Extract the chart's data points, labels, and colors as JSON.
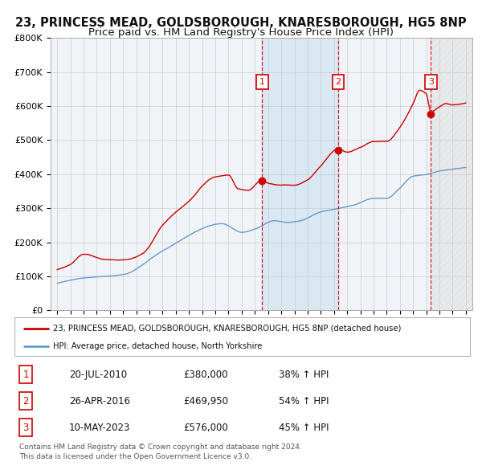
{
  "title": "23, PRINCESS MEAD, GOLDSBOROUGH, KNARESBOROUGH, HG5 8NP",
  "subtitle": "Price paid vs. HM Land Registry's House Price Index (HPI)",
  "ylim": [
    0,
    800000
  ],
  "yticks": [
    0,
    100000,
    200000,
    300000,
    400000,
    500000,
    600000,
    700000,
    800000
  ],
  "ytick_labels": [
    "£0",
    "£100K",
    "£200K",
    "£300K",
    "£400K",
    "£500K",
    "£600K",
    "£700K",
    "£800K"
  ],
  "sale_color": "#cc0000",
  "hpi_color": "#6699cc",
  "background_color": "#ffffff",
  "plot_bg_color": "#f0f4f8",
  "grid_color": "#cccccc",
  "region1_color": "#ddeeff",
  "region3_color": "#e8e8e8",
  "legend_sale_label": "23, PRINCESS MEAD, GOLDSBOROUGH, KNARESBOROUGH, HG5 8NP (detached house)",
  "legend_hpi_label": "HPI: Average price, detached house, North Yorkshire",
  "sales": [
    {
      "year": 2010.55,
      "price": 380000,
      "label": "1"
    },
    {
      "year": 2016.32,
      "price": 469950,
      "label": "2"
    },
    {
      "year": 2023.36,
      "price": 576000,
      "label": "3"
    }
  ],
  "table_rows": [
    {
      "num": "1",
      "date": "20-JUL-2010",
      "price": "£380,000",
      "hpi": "38% ↑ HPI"
    },
    {
      "num": "2",
      "date": "26-APR-2016",
      "price": "£469,950",
      "hpi": "54% ↑ HPI"
    },
    {
      "num": "3",
      "date": "10-MAY-2023",
      "price": "£576,000",
      "hpi": "45% ↑ HPI"
    }
  ],
  "footer": "Contains HM Land Registry data © Crown copyright and database right 2024.\nThis data is licensed under the Open Government Licence v3.0.",
  "title_fontsize": 10.5,
  "subtitle_fontsize": 9.5,
  "x_min": 1994.5,
  "x_max": 2026.5
}
